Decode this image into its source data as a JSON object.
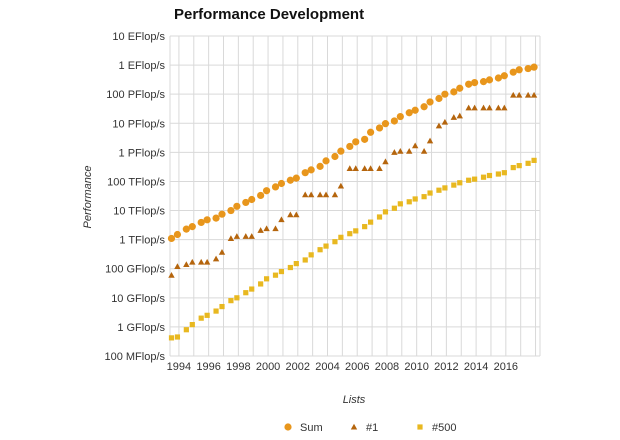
{
  "chart_data": {
    "type": "scatter",
    "title": "Performance Development",
    "xlabel": "Lists",
    "ylabel": "Performance",
    "y_scale": "log10",
    "y_unit": "Flop/s",
    "ylim": [
      100000000.0,
      1e+19
    ],
    "xlim": [
      1993.4,
      2018.3
    ],
    "grid": true,
    "legend_position": "bottom",
    "y_ticks": [
      {
        "value": 1e+19,
        "label": "10 EFlop/s"
      },
      {
        "value": 1e+18,
        "label": "1 EFlop/s"
      },
      {
        "value": 1e+17,
        "label": "100 PFlop/s"
      },
      {
        "value": 1e+16,
        "label": "10 PFlop/s"
      },
      {
        "value": 1000000000000000.0,
        "label": "1 PFlop/s"
      },
      {
        "value": 100000000000000.0,
        "label": "100 TFlop/s"
      },
      {
        "value": 10000000000000.0,
        "label": "10 TFlop/s"
      },
      {
        "value": 1000000000000.0,
        "label": "1 TFlop/s"
      },
      {
        "value": 100000000000.0,
        "label": "100 GFlop/s"
      },
      {
        "value": 10000000000.0,
        "label": "10 GFlop/s"
      },
      {
        "value": 1000000000.0,
        "label": "1 GFlop/s"
      },
      {
        "value": 100000000.0,
        "label": "100 MFlop/s"
      }
    ],
    "x_ticks": [
      "1994",
      "1996",
      "1998",
      "2000",
      "2002",
      "2004",
      "2006",
      "2008",
      "2010",
      "2012",
      "2014",
      "2016"
    ],
    "x": [
      1993.5,
      1993.9,
      1994.5,
      1994.9,
      1995.5,
      1995.9,
      1996.5,
      1996.9,
      1997.5,
      1997.9,
      1998.5,
      1998.9,
      1999.5,
      1999.9,
      2000.5,
      2000.9,
      2001.5,
      2001.9,
      2002.5,
      2002.9,
      2003.5,
      2003.9,
      2004.5,
      2004.9,
      2005.5,
      2005.9,
      2006.5,
      2006.9,
      2007.5,
      2007.9,
      2008.5,
      2008.9,
      2009.5,
      2009.9,
      2010.5,
      2010.9,
      2011.5,
      2011.9,
      2012.5,
      2012.9,
      2013.5,
      2013.9,
      2014.5,
      2014.9,
      2015.5,
      2015.9,
      2016.5,
      2016.9,
      2017.5,
      2017.9
    ],
    "series": [
      {
        "name": "Sum",
        "color": "#e8961c",
        "marker": "circle",
        "values": [
          1100000000000.0,
          1500000000000.0,
          2300000000000.0,
          2800000000000.0,
          3900000000000.0,
          4800000000000.0,
          5500000000000.0,
          7500000000000.0,
          10000000000000.0,
          14000000000000.0,
          19000000000000.0,
          24000000000000.0,
          33000000000000.0,
          48000000000000.0,
          65000000000000.0,
          85000000000000.0,
          110000000000000.0,
          130000000000000.0,
          200000000000000.0,
          250000000000000.0,
          330000000000000.0,
          510000000000000.0,
          720000000000000.0,
          1100000000000000.0,
          1600000000000000.0,
          2300000000000000.0,
          2800000000000000.0,
          4900000000000000.0,
          6900000000000000.0,
          9700000000000000.0,
          1.2e+16,
          1.7e+16,
          2.3e+16,
          2.8e+16,
          3.7e+16,
          5.4e+16,
          7.1e+16,
          1e+17,
          1.2e+17,
          1.6e+17,
          2.2e+17,
          2.5e+17,
          2.7e+17,
          3.1e+17,
          3.6e+17,
          4.3e+17,
          5.7e+17,
          6.9e+17,
          7.6e+17,
          8.5e+17
        ]
      },
      {
        "name": "#1",
        "color": "#b5650d",
        "marker": "triangle",
        "values": [
          60000000000.0,
          120000000000.0,
          140000000000.0,
          170000000000.0,
          170000000000.0,
          170000000000.0,
          220000000000.0,
          370000000000.0,
          1100000000000.0,
          1300000000000.0,
          1300000000000.0,
          1300000000000.0,
          2100000000000.0,
          2400000000000.0,
          2400000000000.0,
          4900000000000.0,
          7200000000000.0,
          7200000000000.0,
          35000000000000.0,
          35000000000000.0,
          35000000000000.0,
          35000000000000.0,
          35000000000000.0,
          70000000000000.0,
          280000000000000.0,
          280000000000000.0,
          280000000000000.0,
          280000000000000.0,
          280000000000000.0,
          480000000000000.0,
          1000000000000000.0,
          1100000000000000.0,
          1100000000000000.0,
          1700000000000000.0,
          1100000000000000.0,
          2500000000000000.0,
          8200000000000000.0,
          1.1e+16,
          1.6e+16,
          1.8e+16,
          3.4e+16,
          3.4e+16,
          3.4e+16,
          3.4e+16,
          3.4e+16,
          3.4e+16,
          9.3e+16,
          9.3e+16,
          9.3e+16,
          9.3e+16
        ]
      },
      {
        "name": "#500",
        "color": "#e8b820",
        "marker": "square",
        "values": [
          420000000.0,
          450000000.0,
          800000000.0,
          1200000000.0,
          2000000000.0,
          2500000000.0,
          3500000000.0,
          5000000000.0,
          8000000000.0,
          10000000000.0,
          15000000000.0,
          20000000000.0,
          30000000000.0,
          45000000000.0,
          60000000000.0,
          80000000000.0,
          110000000000.0,
          150000000000.0,
          200000000000.0,
          300000000000.0,
          450000000000.0,
          600000000000.0,
          850000000000.0,
          1200000000000.0,
          1600000000000.0,
          2000000000000.0,
          2800000000000.0,
          4000000000000.0,
          6000000000000.0,
          9000000000000.0,
          12000000000000.0,
          17000000000000.0,
          20000000000000.0,
          25000000000000.0,
          30000000000000.0,
          40000000000000.0,
          50000000000000.0,
          60000000000000.0,
          75000000000000.0,
          90000000000000.0,
          110000000000000.0,
          120000000000000.0,
          140000000000000.0,
          160000000000000.0,
          180000000000000.0,
          200000000000000.0,
          300000000000000.0,
          350000000000000.0,
          420000000000000.0,
          530000000000000.0
        ]
      }
    ]
  }
}
